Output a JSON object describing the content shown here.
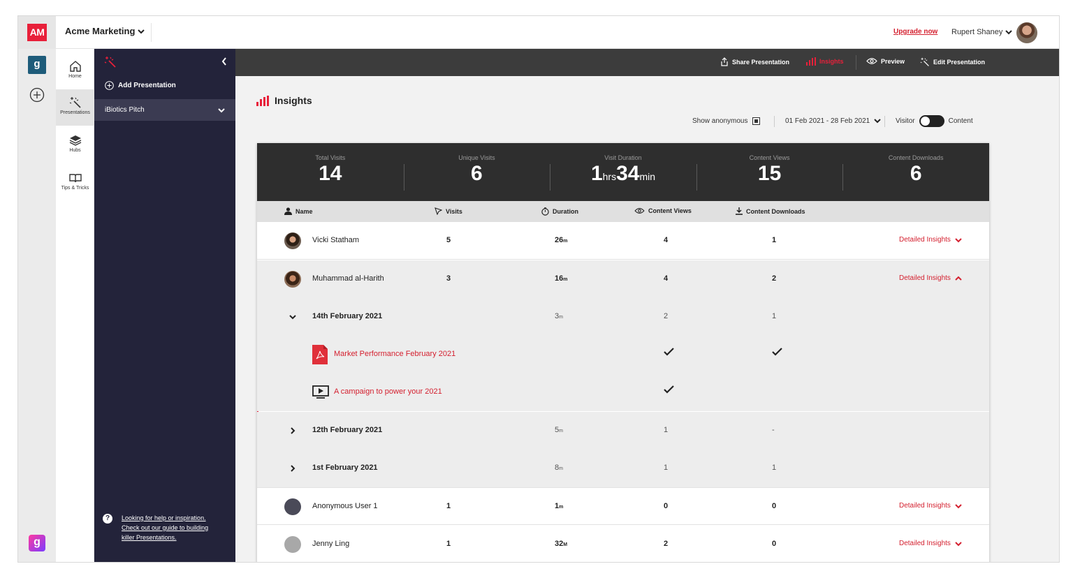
{
  "app": {
    "logo": "AM",
    "org_name": "Acme Marketing",
    "upgrade_label": "Upgrade now",
    "user_name": "Rupert Shaney",
    "workspace_badge": "g",
    "bottom_logo": "g",
    "brand_color": "#e8203a"
  },
  "nav": {
    "items": [
      {
        "label": "Home",
        "icon": "home-icon"
      },
      {
        "label": "Presentations",
        "icon": "magic-wand-icon"
      },
      {
        "label": "Hubs",
        "icon": "layers-icon"
      },
      {
        "label": "Tips & Tricks",
        "icon": "book-icon"
      }
    ]
  },
  "panel": {
    "add_label": "Add Presentation",
    "selected_presentation": "iBiotics Pitch",
    "help_text": "Looking for help or inspiration. Check out our guide to building killer Presentations."
  },
  "toolbar": {
    "share": "Share Presentation",
    "insights": "Insights",
    "preview": "Preview",
    "edit": "Edit Presentation"
  },
  "page": {
    "title": "Insights",
    "show_anonymous": "Show anonymous",
    "date_range": "01 Feb 2021 - 28 Feb 2021",
    "toggle_left": "Visitor",
    "toggle_right": "Content"
  },
  "stats": {
    "total_visits_label": "Total Visits",
    "total_visits": "14",
    "unique_visits_label": "Unique Visits",
    "unique_visits": "6",
    "duration_label": "Visit Duration",
    "duration_hours": "1",
    "duration_hours_unit": "hrs",
    "duration_minutes": "34",
    "duration_minutes_unit": "min",
    "content_views_label": "Content Views",
    "content_views": "15",
    "content_downloads_label": "Content Downloads",
    "content_downloads": "6"
  },
  "table": {
    "headers": {
      "name": "Name",
      "visits": "Visits",
      "duration": "Duration",
      "views": "Content Views",
      "downloads": "Content Downloads"
    },
    "detail_label": "Detailed Insights",
    "rows": [
      {
        "name": "Vicki Statham",
        "visits": "5",
        "duration": "26",
        "duration_unit": "m",
        "views": "4",
        "downloads": "1"
      },
      {
        "name": "Muhammad al-Harith",
        "visits": "3",
        "duration": "16",
        "duration_unit": "m",
        "views": "4",
        "downloads": "2"
      },
      {
        "name": "Anonymous User 1",
        "visits": "1",
        "duration": "1",
        "duration_unit": "m",
        "views": "0",
        "downloads": "0"
      },
      {
        "name": "Jenny Ling",
        "visits": "1",
        "duration": "32",
        "duration_unit": "M",
        "views": "2",
        "downloads": "0"
      }
    ],
    "sessions": [
      {
        "date": "14th February 2021",
        "duration": "3",
        "duration_unit": "m",
        "views": "2",
        "downloads": "1"
      },
      {
        "date": "12th February 2021",
        "duration": "5",
        "duration_unit": "m",
        "views": "1",
        "downloads": "-"
      },
      {
        "date": "1st February 2021",
        "duration": "8",
        "duration_unit": "m",
        "views": "1",
        "downloads": "1"
      }
    ],
    "session_files": [
      {
        "title": "Market Performance February 2021",
        "type_icon": "pdf-icon",
        "viewed": true,
        "downloaded": true
      },
      {
        "title": "A campaign to power your 2021",
        "type_icon": "video-icon",
        "viewed": true,
        "downloaded": false
      }
    ]
  }
}
